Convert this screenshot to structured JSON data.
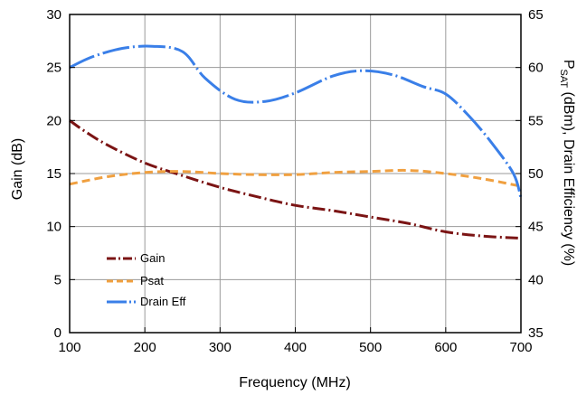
{
  "chart_data": {
    "type": "line",
    "xlabel": "Frequency (MHz)",
    "ylabel": "Gain (dB)",
    "y2label_main": "P",
    "y2label_sub": "SAT",
    "y2label_rest": " (dBm), Drain Efficiency (%)",
    "xlim": [
      100,
      700
    ],
    "ylim": [
      0,
      30
    ],
    "y2lim": [
      35,
      65
    ],
    "x_ticks": [
      "100",
      "200",
      "300",
      "400",
      "500",
      "600",
      "700"
    ],
    "y_ticks": [
      "0",
      "5",
      "10",
      "15",
      "20",
      "25",
      "30"
    ],
    "y2_ticks": [
      "35",
      "40",
      "45",
      "50",
      "55",
      "60",
      "65"
    ],
    "grid": true,
    "legend_position": "lower-left",
    "series": [
      {
        "name": "Gain",
        "axis": "left",
        "color": "#7b1414",
        "dash": "dash-dot",
        "x": [
          100,
          120,
          150,
          200,
          250,
          300,
          350,
          400,
          450,
          500,
          550,
          600,
          650,
          700
        ],
        "y": [
          20,
          19,
          17.7,
          16,
          14.8,
          13.7,
          12.8,
          12,
          11.5,
          10.9,
          10.3,
          9.5,
          9.1,
          8.9
        ]
      },
      {
        "name": "Psat",
        "axis": "right",
        "color": "#f0a040",
        "dash": "dash",
        "x": [
          100,
          150,
          200,
          250,
          300,
          350,
          400,
          450,
          500,
          550,
          600,
          650,
          700
        ],
        "y": [
          49,
          49.7,
          50.1,
          50.2,
          50,
          49.9,
          49.9,
          50.1,
          50.2,
          50.3,
          50,
          49.5,
          48.8
        ]
      },
      {
        "name": "Drain Eff",
        "axis": "right",
        "color": "#3a7fe8",
        "dash": "long-dash",
        "x": [
          100,
          130,
          170,
          210,
          250,
          280,
          320,
          360,
          400,
          450,
          490,
          530,
          570,
          600,
          630,
          660,
          690,
          700
        ],
        "y": [
          60,
          61,
          61.8,
          62,
          61.5,
          59,
          57,
          56.8,
          57.6,
          59.2,
          59.7,
          59.3,
          58.2,
          57.5,
          55.5,
          53,
          50,
          47.7
        ]
      }
    ]
  }
}
